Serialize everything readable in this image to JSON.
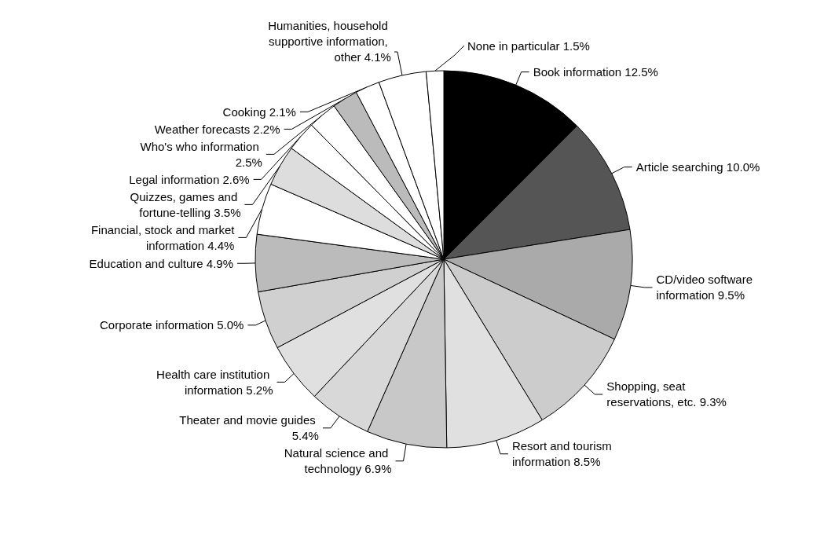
{
  "chart_data": {
    "type": "pie",
    "categories": [
      "Book information",
      "Article searching",
      "CD/video software information",
      "Shopping, seat reservations, etc.",
      "Resort and tourism information",
      "Natural science and technology",
      "Theater and movie guides",
      "Health care institution information",
      "Corporate information",
      "Education and culture",
      "Financial, stock and market information",
      "Quizzes, games and fortune-telling",
      "Legal information",
      "Who's who information",
      "Weather forecasts",
      "Cooking",
      "Humanities, household supportive information, other",
      "None in particular"
    ],
    "values": [
      12.5,
      10.0,
      9.5,
      9.3,
      8.5,
      6.9,
      5.4,
      5.2,
      5.0,
      4.9,
      4.4,
      3.5,
      2.6,
      2.5,
      2.2,
      2.1,
      4.1,
      1.5
    ],
    "value_labels": [
      "12.5%",
      "10.0%",
      "9.5%",
      "9.3%",
      "8.5%",
      "6.9%",
      "5.4%",
      "5.2%",
      "5.0%",
      "4.9%",
      "4.4%",
      "3.5%",
      "2.6%",
      "2.5%",
      "2.2%",
      "2.1%",
      "4.1%",
      "1.5%"
    ],
    "colors": [
      "#000000",
      "#555555",
      "#aaaaaa",
      "#cccccc",
      "#e0e0e0",
      "#c8c8c8",
      "#d8d8d8",
      "#e0e0e0",
      "#d0d0d0",
      "#bbbbbb",
      "#ffffff",
      "#dddddd",
      "#ffffff",
      "#ffffff",
      "#bbbbbb",
      "#ffffff",
      "#ffffff",
      "#ffffff"
    ],
    "legend": false
  }
}
